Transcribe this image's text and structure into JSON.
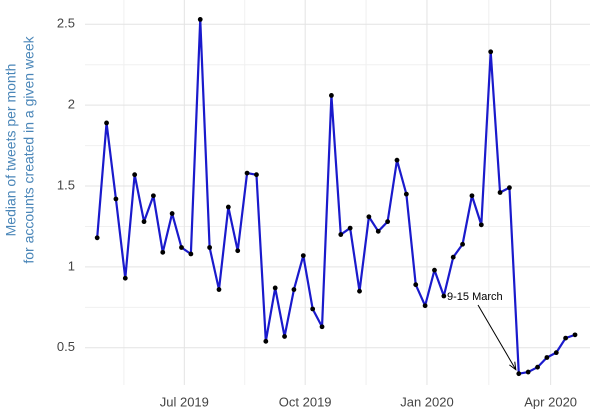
{
  "chart_data": {
    "type": "line",
    "ylabel": [
      "Median of tweets per month",
      "for accounts created in a given week"
    ],
    "x": [
      0,
      1,
      2,
      3,
      4,
      5,
      6,
      7,
      8,
      9,
      10,
      11,
      12,
      13,
      14,
      15,
      16,
      17,
      18,
      19,
      20,
      21,
      22,
      23,
      24,
      25,
      26,
      27,
      28,
      29,
      30,
      31,
      32,
      33,
      34,
      35,
      36,
      37,
      38,
      39,
      40,
      41,
      42,
      43,
      44,
      45,
      46,
      47,
      48,
      49,
      50,
      51
    ],
    "series": [
      {
        "color": "#1a1acc",
        "values": [
          1.18,
          1.89,
          1.42,
          0.93,
          1.57,
          1.28,
          1.44,
          1.09,
          1.33,
          1.12,
          1.08,
          2.53,
          1.12,
          0.86,
          1.37,
          1.1,
          1.58,
          1.57,
          0.54,
          0.87,
          0.57,
          0.86,
          1.07,
          0.74,
          0.63,
          2.06,
          1.2,
          1.24,
          0.85,
          1.31,
          1.22,
          1.28,
          1.66,
          1.45,
          0.89,
          0.76,
          0.98,
          0.82,
          1.06,
          1.14,
          1.44,
          1.26,
          2.33,
          1.46,
          1.49,
          0.34,
          0.35,
          0.38,
          0.44,
          0.47,
          0.56,
          0.58
        ]
      }
    ],
    "annotation": "9-15 March",
    "xlim": [
      -1.3,
      52.6
    ],
    "xticks": [
      {
        "value": 9.3,
        "label": "Jul 2019"
      },
      {
        "value": 22.2,
        "label": "Oct 2019"
      },
      {
        "value": 35.2,
        "label": "Jan 2020"
      },
      {
        "value": 48.4,
        "label": "Apr 2020"
      }
    ],
    "ylim": [
      0.27,
      2.65
    ],
    "yticks": [
      0.5,
      1,
      1.5,
      2,
      2.5
    ],
    "grid": true
  }
}
